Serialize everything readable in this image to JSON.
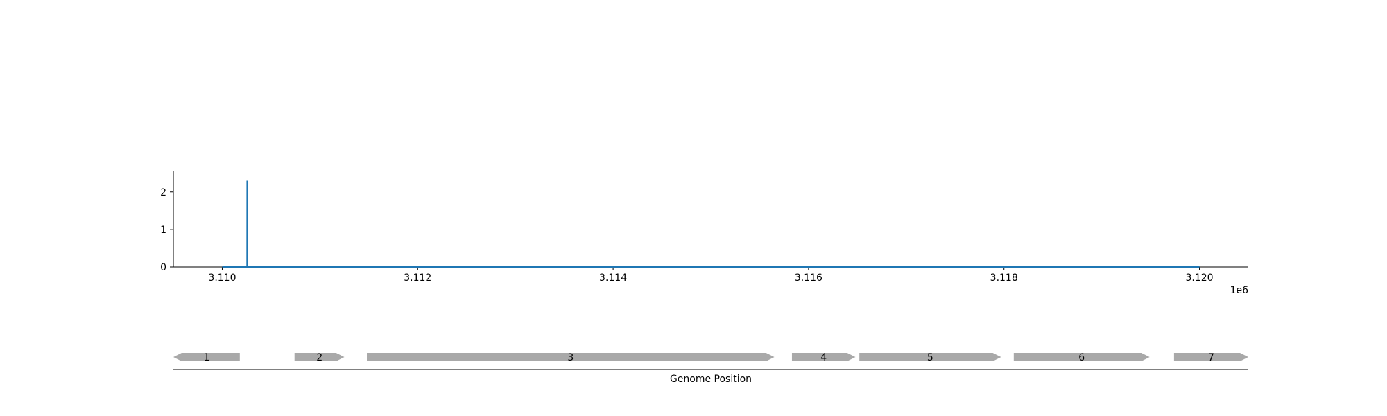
{
  "chart_data": [
    {
      "type": "line",
      "x": [
        3110000,
        3110255,
        3110256,
        3110257,
        3120000
      ],
      "y": [
        0,
        0,
        2.3,
        0,
        0
      ],
      "xlim": [
        3109500,
        3120500
      ],
      "ylim": [
        0,
        2.55
      ],
      "xticks": [
        3110000,
        3112000,
        3114000,
        3116000,
        3118000,
        3120000
      ],
      "xtick_labels": [
        "3.110",
        "3.112",
        "3.114",
        "3.116",
        "3.118",
        "3.120"
      ],
      "yticks": [
        0,
        1,
        2
      ],
      "ytick_labels": [
        "0",
        "1",
        "2"
      ],
      "x_offset_label": "1e6",
      "color": "#1f77b4",
      "grid": false
    },
    {
      "type": "gene-track",
      "xlim": [
        3109500,
        3120500
      ],
      "xlabel": "Genome Position",
      "color": "#a9a9a9",
      "genes": [
        {
          "label": "1",
          "start": 3109500,
          "end": 3110180,
          "strand": "-"
        },
        {
          "label": "2",
          "start": 3110740,
          "end": 3111250,
          "strand": "+"
        },
        {
          "label": "3",
          "start": 3111480,
          "end": 3115650,
          "strand": "+"
        },
        {
          "label": "4",
          "start": 3115830,
          "end": 3116480,
          "strand": "+"
        },
        {
          "label": "5",
          "start": 3116520,
          "end": 3117970,
          "strand": "+"
        },
        {
          "label": "6",
          "start": 3118100,
          "end": 3119490,
          "strand": "+"
        },
        {
          "label": "7",
          "start": 3119740,
          "end": 3120500,
          "strand": "+"
        }
      ]
    }
  ]
}
